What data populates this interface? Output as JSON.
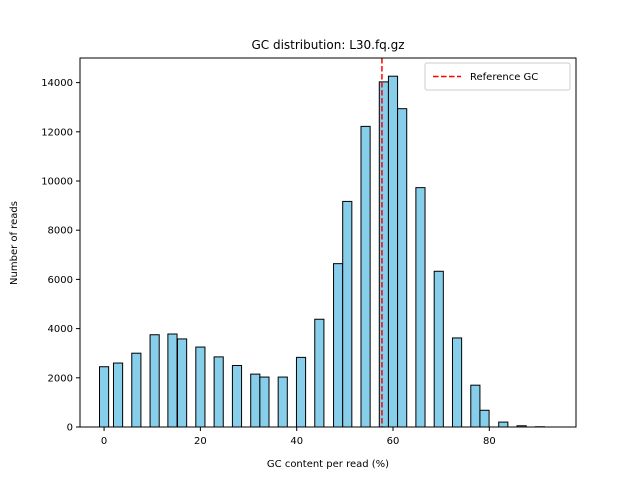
{
  "chart_data": {
    "type": "bar",
    "title": "GC distribution: L30.fq.gz",
    "xlabel": "GC content per read (%)",
    "ylabel": "Number of reads",
    "xlim": [
      -5,
      98
    ],
    "ylim": [
      0,
      15000
    ],
    "xticks": [
      0,
      20,
      40,
      60,
      80
    ],
    "yticks": [
      0,
      2000,
      4000,
      6000,
      8000,
      10000,
      12000,
      14000
    ],
    "bar_color": "#87ceeb",
    "bar_edge_color": "#000000",
    "bin_width": 1.9,
    "series": [
      {
        "x": [
          0,
          2.9,
          6.7,
          10.5,
          14.2,
          16.2,
          20,
          23.8,
          27.6,
          31.4,
          33.3,
          37.1,
          40.9,
          44.7,
          48.6,
          50.5,
          54.3,
          58.1,
          60,
          61.9,
          65.7,
          69.5,
          73.3,
          77.1,
          79,
          82.9,
          86.7,
          90.5
        ],
        "values": [
          2450,
          2600,
          3000,
          3750,
          3780,
          3580,
          3250,
          2850,
          2500,
          2150,
          2030,
          2030,
          2830,
          4380,
          6640,
          9170,
          12220,
          14030,
          14260,
          12940,
          9730,
          6330,
          3620,
          1700,
          680,
          200,
          50,
          10
        ]
      }
    ],
    "reference_line": {
      "x": 57.7,
      "label": "Reference GC",
      "color": "#ff0000",
      "style": "dashed"
    },
    "legend": {
      "position": "top-right",
      "entries": [
        "Reference GC"
      ]
    },
    "grid": false
  }
}
